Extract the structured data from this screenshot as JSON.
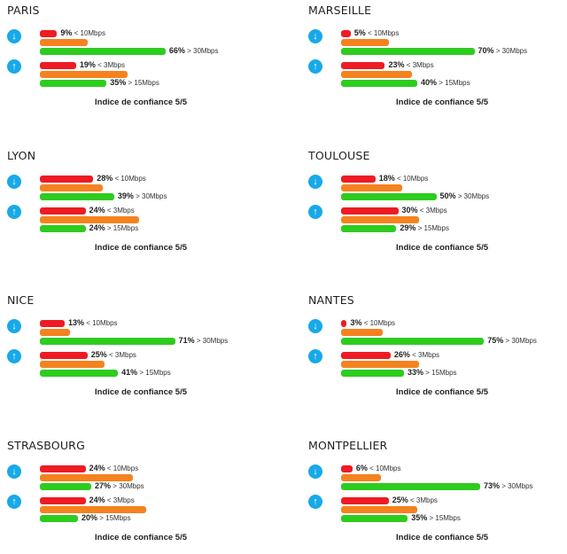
{
  "colors": {
    "low": "#ee1b24",
    "mid": "#f5821f",
    "high": "#2ecc1f",
    "icon": "#18a9e8"
  },
  "icons": {
    "download": "arrow-down-circle-icon",
    "upload": "arrow-up-circle-icon"
  },
  "chart_data": [
    {
      "type": "bar",
      "title": "PARIS",
      "confidence": "Indice de confiance 5/5",
      "download": [
        {
          "pct": "9%",
          "label": "< 10Mbps",
          "value": 9
        },
        {
          "pct": "",
          "label": "",
          "value": 25
        },
        {
          "pct": "66%",
          "label": "> 30Mbps",
          "value": 66
        }
      ],
      "upload": [
        {
          "pct": "19%",
          "label": "< 3Mbps",
          "value": 19
        },
        {
          "pct": "",
          "label": "",
          "value": 46
        },
        {
          "pct": "35%",
          "label": "> 15Mbps",
          "value": 35
        }
      ]
    },
    {
      "type": "bar",
      "title": "MARSEILLE",
      "confidence": "Indice de confiance 5/5",
      "download": [
        {
          "pct": "5%",
          "label": "< 10Mbps",
          "value": 5
        },
        {
          "pct": "",
          "label": "",
          "value": 25
        },
        {
          "pct": "70%",
          "label": "> 30Mbps",
          "value": 70
        }
      ],
      "upload": [
        {
          "pct": "23%",
          "label": "< 3Mbps",
          "value": 23
        },
        {
          "pct": "",
          "label": "",
          "value": 37
        },
        {
          "pct": "40%",
          "label": "> 15Mbps",
          "value": 40
        }
      ]
    },
    {
      "type": "bar",
      "title": "LYON",
      "confidence": "Indice de confiance 5/5",
      "download": [
        {
          "pct": "28%",
          "label": "< 10Mbps",
          "value": 28
        },
        {
          "pct": "",
          "label": "",
          "value": 33
        },
        {
          "pct": "39%",
          "label": "> 30Mbps",
          "value": 39
        }
      ],
      "upload": [
        {
          "pct": "24%",
          "label": "< 3Mbps",
          "value": 24
        },
        {
          "pct": "",
          "label": "",
          "value": 52
        },
        {
          "pct": "24%",
          "label": "> 15Mbps",
          "value": 24
        }
      ]
    },
    {
      "type": "bar",
      "title": "TOULOUSE",
      "confidence": "Indice de confiance 5/5",
      "download": [
        {
          "pct": "18%",
          "label": "< 10Mbps",
          "value": 18
        },
        {
          "pct": "",
          "label": "",
          "value": 32
        },
        {
          "pct": "50%",
          "label": "> 30Mbps",
          "value": 50
        }
      ],
      "upload": [
        {
          "pct": "30%",
          "label": "< 3Mbps",
          "value": 30
        },
        {
          "pct": "",
          "label": "",
          "value": 41
        },
        {
          "pct": "29%",
          "label": "> 15Mbps",
          "value": 29
        }
      ]
    },
    {
      "type": "bar",
      "title": "NICE",
      "confidence": "Indice de confiance 5/5",
      "download": [
        {
          "pct": "13%",
          "label": "< 10Mbps",
          "value": 13
        },
        {
          "pct": "",
          "label": "",
          "value": 16
        },
        {
          "pct": "71%",
          "label": "> 30Mbps",
          "value": 71
        }
      ],
      "upload": [
        {
          "pct": "25%",
          "label": "< 3Mbps",
          "value": 25
        },
        {
          "pct": "",
          "label": "",
          "value": 34
        },
        {
          "pct": "41%",
          "label": "> 15Mbps",
          "value": 41
        }
      ]
    },
    {
      "type": "bar",
      "title": "NANTES",
      "confidence": "Indice de confiance 5/5",
      "download": [
        {
          "pct": "3%",
          "label": "< 10Mbps",
          "value": 3
        },
        {
          "pct": "",
          "label": "",
          "value": 22
        },
        {
          "pct": "75%",
          "label": "> 30Mbps",
          "value": 75
        }
      ],
      "upload": [
        {
          "pct": "26%",
          "label": "< 3Mbps",
          "value": 26
        },
        {
          "pct": "",
          "label": "",
          "value": 41
        },
        {
          "pct": "33%",
          "label": "> 15Mbps",
          "value": 33
        }
      ]
    },
    {
      "type": "bar",
      "title": "STRASBOURG",
      "confidence": "Indice de confiance 5/5",
      "download": [
        {
          "pct": "24%",
          "label": "< 10Mbps",
          "value": 24
        },
        {
          "pct": "",
          "label": "",
          "value": 49
        },
        {
          "pct": "27%",
          "label": "> 30Mbps",
          "value": 27
        }
      ],
      "upload": [
        {
          "pct": "24%",
          "label": "< 3Mbps",
          "value": 24
        },
        {
          "pct": "",
          "label": "",
          "value": 56
        },
        {
          "pct": "20%",
          "label": "> 15Mbps",
          "value": 20
        }
      ]
    },
    {
      "type": "bar",
      "title": "MONTPELLIER",
      "confidence": "Indice de confiance 5/5",
      "download": [
        {
          "pct": "6%",
          "label": "< 10Mbps",
          "value": 6
        },
        {
          "pct": "",
          "label": "",
          "value": 21
        },
        {
          "pct": "73%",
          "label": "> 30Mbps",
          "value": 73
        }
      ],
      "upload": [
        {
          "pct": "25%",
          "label": "< 3Mbps",
          "value": 25
        },
        {
          "pct": "",
          "label": "",
          "value": 40
        },
        {
          "pct": "35%",
          "label": "> 15Mbps",
          "value": 35
        }
      ]
    }
  ]
}
